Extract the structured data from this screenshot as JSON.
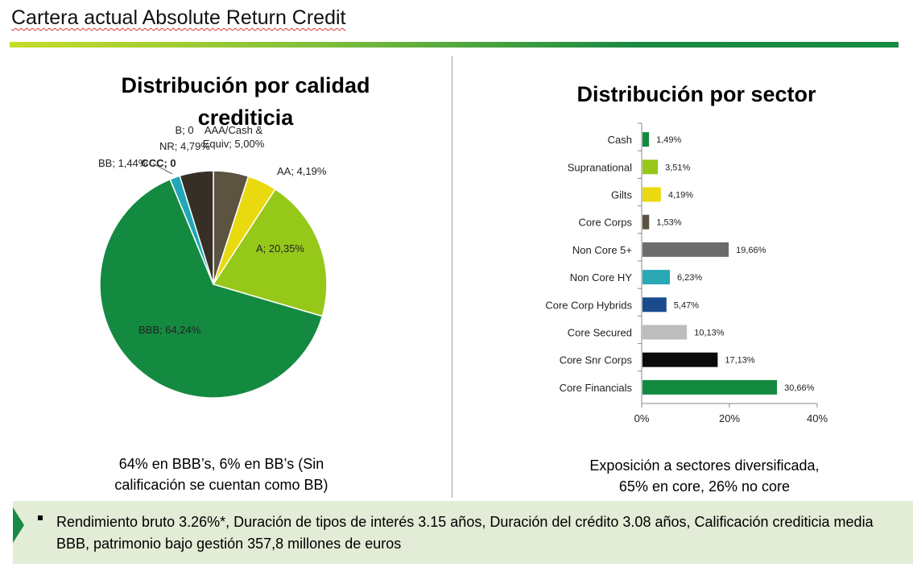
{
  "page": {
    "title": "Cartera actual Absolute Return Credit"
  },
  "left_panel": {
    "heading_line1": "Distribución por calidad",
    "heading_line2": "crediticia",
    "caption_line1": "64% en BBB’s,  6% en BB’s (Sin",
    "caption_line2": "calificación se cuentan como BB)"
  },
  "right_panel": {
    "heading": "Distribución por sector",
    "caption_line1": "Exposición a sectores diversificada,",
    "caption_line2": "65% en core, 26% no core"
  },
  "footer": {
    "text": "Rendimiento bruto 3.26%*, Duración de tipos de interés 3.15 años, Duración del crédito 3.08 años, Calificación crediticia media BBB, patrimonio bajo gestión 357,8 millones de euros"
  },
  "chart_data": [
    {
      "type": "pie",
      "title": "Distribución por calidad crediticia",
      "slices": [
        {
          "label": "AAA/Cash & Equiv; 5,00%",
          "value": 5.0,
          "color": "#5c5340"
        },
        {
          "label": "AA; 4,19%",
          "value": 4.19,
          "color": "#e9d90f"
        },
        {
          "label": "A; 20,35%",
          "value": 20.35,
          "color": "#96c81a"
        },
        {
          "label": "BBB; 64,24%",
          "value": 64.24,
          "color": "#148a41"
        },
        {
          "label": "BB; 1,44%",
          "value": 1.44,
          "color": "#22a6b8"
        },
        {
          "label": "B; 0",
          "value": 0,
          "color": "#1f5a9a"
        },
        {
          "label": "CCC; 0",
          "value": 0,
          "color": "#7a3f7a"
        },
        {
          "label": "NR; 4,79%",
          "value": 4.79,
          "color": "#352f25"
        }
      ]
    },
    {
      "type": "bar",
      "orientation": "horizontal",
      "title": "Distribución por sector",
      "categories": [
        "Cash",
        "Supranational",
        "Gilts",
        "Core Corps",
        "Non Core 5+",
        "Non Core HY",
        "Core Corp Hybrids",
        "Core Secured",
        "Core Snr Corps",
        "Core Financials"
      ],
      "values": [
        1.49,
        3.51,
        4.19,
        1.53,
        19.66,
        6.23,
        5.47,
        10.13,
        17.13,
        30.66
      ],
      "value_labels": [
        "1,49%",
        "3,51%",
        "4,19%",
        "1,53%",
        "19,66%",
        "6,23%",
        "5,47%",
        "10,13%",
        "17,13%",
        "30,66%"
      ],
      "colors": [
        "#148a41",
        "#96c81a",
        "#e9d90f",
        "#5c5340",
        "#6b6b6b",
        "#2aa9b5",
        "#1a4b8c",
        "#bdbdbd",
        "#0a0a0a",
        "#148a41"
      ],
      "xlim": [
        0,
        40
      ],
      "x_ticks": [
        "0%",
        "20%",
        "40%"
      ],
      "grid": false,
      "legend": "none"
    }
  ]
}
